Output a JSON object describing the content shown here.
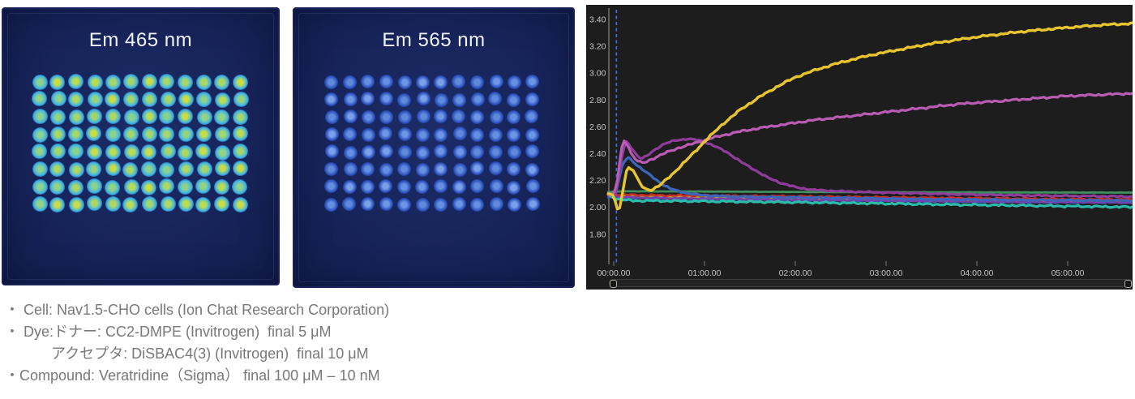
{
  "plates": [
    {
      "title": "Em 465 nm",
      "rows": 8,
      "cols": 12,
      "well_inner_colors": [
        "#a4d66e",
        "#b9dc55",
        "#92d386",
        "#c6dc49",
        "#8bd18f",
        "#add764"
      ],
      "well_ring_color": "#3fb4e6",
      "well_glow_color": "rgba(32,90,200,0.5)"
    },
    {
      "title": "Em 565 nm",
      "rows": 8,
      "cols": 12,
      "well_inner_colors": [
        "#6d96e4",
        "#5f8ad9",
        "#7aa0e8",
        "#6590df"
      ],
      "well_ring_color": "#2d52bf",
      "well_glow_color": "rgba(25,60,165,0.45)"
    }
  ],
  "chart_data": {
    "type": "line",
    "title": "",
    "xlabel": "",
    "ylabel": "",
    "background": "#1d1d1d",
    "axis_color": "#a0a0a0",
    "tick_color": "#777777",
    "label_color": "#c6c6c6",
    "marker_color": "#4b6fd0",
    "grid": false,
    "legend": false,
    "x_tick_labels": [
      "00:00.00",
      "01:00.00",
      "02:00.00",
      "03:00.00",
      "04:00.00",
      "05:00.00"
    ],
    "x_tick_hours": [
      0,
      1,
      2,
      3,
      4,
      5
    ],
    "y_tick_values": [
      3.4,
      3.2,
      3.0,
      2.8,
      2.6,
      2.4,
      2.2,
      2.0,
      1.8
    ],
    "ylim": [
      1.62,
      3.47
    ],
    "xlim_hours": [
      -0.25,
      5.75
    ],
    "stim_marker_time_hours": 0.03,
    "series": [
      {
        "name": "baseline-blue2",
        "color": "#3f55b8",
        "width": 2.6,
        "noise": 0.005,
        "points": [
          [
            -0.06,
            2.075
          ],
          [
            0.5,
            2.065
          ],
          [
            1.5,
            2.058
          ],
          [
            2.5,
            2.05
          ],
          [
            3.5,
            2.044
          ],
          [
            4.5,
            2.038
          ],
          [
            5.72,
            2.034
          ]
        ]
      },
      {
        "name": "baseline-orange",
        "color": "#cf7a24",
        "width": 2.6,
        "noise": 0.006,
        "points": [
          [
            -0.06,
            2.085
          ],
          [
            0.5,
            2.075
          ],
          [
            1.5,
            2.068
          ],
          [
            2.5,
            2.06
          ],
          [
            3.5,
            2.052
          ],
          [
            4.5,
            2.046
          ],
          [
            5.72,
            2.042
          ]
        ]
      },
      {
        "name": "baseline-olive",
        "color": "#aaa22f",
        "width": 2.6,
        "noise": 0.006,
        "points": [
          [
            -0.06,
            2.09
          ],
          [
            0.3,
            2.08
          ],
          [
            1.0,
            2.075
          ],
          [
            2.0,
            2.07
          ],
          [
            3.0,
            2.062
          ],
          [
            4.0,
            2.055
          ],
          [
            5.0,
            2.05
          ],
          [
            5.72,
            2.048
          ]
        ]
      },
      {
        "name": "baseline-purple",
        "color": "#7b3fa8",
        "width": 2.6,
        "noise": 0.006,
        "points": [
          [
            -0.06,
            2.08
          ],
          [
            0.5,
            2.07
          ],
          [
            1.5,
            2.062
          ],
          [
            2.5,
            2.055
          ],
          [
            3.5,
            2.048
          ],
          [
            4.5,
            2.042
          ],
          [
            5.72,
            2.038
          ]
        ]
      },
      {
        "name": "baseline-red",
        "color": "#c62f28",
        "width": 2.6,
        "noise": 0.007,
        "points": [
          [
            -0.06,
            2.105
          ],
          [
            0.05,
            2.095
          ],
          [
            0.5,
            2.09
          ],
          [
            1.0,
            2.088
          ],
          [
            2.0,
            2.082
          ],
          [
            3.0,
            2.075
          ],
          [
            4.0,
            2.068
          ],
          [
            5.0,
            2.062
          ],
          [
            5.72,
            2.06
          ]
        ]
      },
      {
        "name": "trace-teal",
        "color": "#2cbcab",
        "width": 3.2,
        "noise": 0.008,
        "points": [
          [
            -0.06,
            2.09
          ],
          [
            0.05,
            2.06
          ],
          [
            0.2,
            2.05
          ],
          [
            0.6,
            2.048
          ],
          [
            1.2,
            2.044
          ],
          [
            2.0,
            2.038
          ],
          [
            2.8,
            2.03
          ],
          [
            3.6,
            2.022
          ],
          [
            4.4,
            2.015
          ],
          [
            5.1,
            2.008
          ],
          [
            5.72,
            2.002
          ]
        ]
      },
      {
        "name": "trace-green-flat",
        "color": "#3f8f5f",
        "width": 2.8,
        "noise": 0.001,
        "points": [
          [
            -0.06,
            2.115
          ],
          [
            0.1,
            2.12
          ],
          [
            1.0,
            2.118
          ],
          [
            2.0,
            2.115
          ],
          [
            3.0,
            2.113
          ],
          [
            4.0,
            2.112
          ],
          [
            5.0,
            2.111
          ],
          [
            5.72,
            2.11
          ]
        ]
      },
      {
        "name": "trace-blue",
        "color": "#3c66bb",
        "width": 3.2,
        "noise": 0.006,
        "points": [
          [
            -0.06,
            2.1
          ],
          [
            0.01,
            2.08
          ],
          [
            0.05,
            2.18
          ],
          [
            0.09,
            2.3
          ],
          [
            0.13,
            2.36
          ],
          [
            0.17,
            2.37
          ],
          [
            0.23,
            2.33
          ],
          [
            0.3,
            2.29
          ],
          [
            0.38,
            2.25
          ],
          [
            0.46,
            2.21
          ],
          [
            0.54,
            2.17
          ],
          [
            0.62,
            2.14
          ],
          [
            0.72,
            2.12
          ],
          [
            0.85,
            2.1
          ],
          [
            1.0,
            2.09
          ],
          [
            1.3,
            2.08
          ],
          [
            1.8,
            2.075
          ],
          [
            2.5,
            2.07
          ],
          [
            3.5,
            2.06
          ],
          [
            4.5,
            2.055
          ],
          [
            5.72,
            2.05
          ]
        ]
      },
      {
        "name": "trace-purple",
        "color": "#8f3d9a",
        "width": 3.2,
        "noise": 0.006,
        "points": [
          [
            -0.06,
            2.1
          ],
          [
            0.02,
            2.09
          ],
          [
            0.06,
            2.25
          ],
          [
            0.1,
            2.42
          ],
          [
            0.14,
            2.49
          ],
          [
            0.18,
            2.46
          ],
          [
            0.24,
            2.4
          ],
          [
            0.3,
            2.36
          ],
          [
            0.36,
            2.38
          ],
          [
            0.45,
            2.43
          ],
          [
            0.55,
            2.47
          ],
          [
            0.68,
            2.5
          ],
          [
            0.82,
            2.51
          ],
          [
            0.95,
            2.5
          ],
          [
            1.1,
            2.46
          ],
          [
            1.25,
            2.41
          ],
          [
            1.4,
            2.34
          ],
          [
            1.55,
            2.28
          ],
          [
            1.7,
            2.22
          ],
          [
            1.85,
            2.18
          ],
          [
            2.0,
            2.15
          ],
          [
            2.2,
            2.13
          ],
          [
            2.5,
            2.12
          ],
          [
            3.0,
            2.11
          ],
          [
            3.6,
            2.1
          ],
          [
            4.4,
            2.09
          ],
          [
            5.1,
            2.085
          ],
          [
            5.72,
            2.08
          ]
        ]
      },
      {
        "name": "trace-magenta",
        "color": "#bb5cb4",
        "width": 3.2,
        "noise": 0.008,
        "points": [
          [
            -0.06,
            2.1
          ],
          [
            0.0,
            2.09
          ],
          [
            0.04,
            2.2
          ],
          [
            0.08,
            2.42
          ],
          [
            0.11,
            2.5
          ],
          [
            0.15,
            2.47
          ],
          [
            0.2,
            2.39
          ],
          [
            0.27,
            2.34
          ],
          [
            0.33,
            2.33
          ],
          [
            0.42,
            2.36
          ],
          [
            0.55,
            2.4
          ],
          [
            0.7,
            2.44
          ],
          [
            0.9,
            2.48
          ],
          [
            1.1,
            2.52
          ],
          [
            1.35,
            2.56
          ],
          [
            1.6,
            2.59
          ],
          [
            1.9,
            2.62
          ],
          [
            2.2,
            2.65
          ],
          [
            2.6,
            2.68
          ],
          [
            3.0,
            2.71
          ],
          [
            3.4,
            2.74
          ],
          [
            3.8,
            2.77
          ],
          [
            4.2,
            2.79
          ],
          [
            4.6,
            2.81
          ],
          [
            5.0,
            2.83
          ],
          [
            5.4,
            2.84
          ],
          [
            5.72,
            2.85
          ]
        ]
      },
      {
        "name": "trace-yellow",
        "color": "#e8c52e",
        "width": 3.4,
        "noise": 0.008,
        "points": [
          [
            -0.06,
            2.1
          ],
          [
            -0.01,
            2.09
          ],
          [
            0.02,
            2.04
          ],
          [
            0.04,
            1.98
          ],
          [
            0.07,
            2.0
          ],
          [
            0.1,
            2.13
          ],
          [
            0.14,
            2.27
          ],
          [
            0.17,
            2.3
          ],
          [
            0.21,
            2.28
          ],
          [
            0.27,
            2.2
          ],
          [
            0.33,
            2.14
          ],
          [
            0.42,
            2.13
          ],
          [
            0.52,
            2.17
          ],
          [
            0.65,
            2.25
          ],
          [
            0.8,
            2.35
          ],
          [
            1.0,
            2.49
          ],
          [
            1.2,
            2.62
          ],
          [
            1.4,
            2.73
          ],
          [
            1.6,
            2.82
          ],
          [
            1.8,
            2.9
          ],
          [
            2.0,
            2.97
          ],
          [
            2.25,
            3.03
          ],
          [
            2.5,
            3.08
          ],
          [
            2.8,
            3.13
          ],
          [
            3.1,
            3.17
          ],
          [
            3.5,
            3.22
          ],
          [
            4.0,
            3.27
          ],
          [
            4.5,
            3.31
          ],
          [
            5.0,
            3.34
          ],
          [
            5.4,
            3.36
          ],
          [
            5.72,
            3.37
          ]
        ]
      }
    ]
  },
  "notes": {
    "lines": [
      "・ Cell: Nav1.5-CHO cells (Ion Chat Research Corporation)",
      "・ Dye:ドナー: CC2-DMPE (Invitrogen)  final 5 μM",
      "アクセプタ: DiSBAC4(3) (Invitrogen)  final 10 μM",
      "・Compound: Veratridine（Sigma） final 100 μM – 10 nM"
    ]
  }
}
